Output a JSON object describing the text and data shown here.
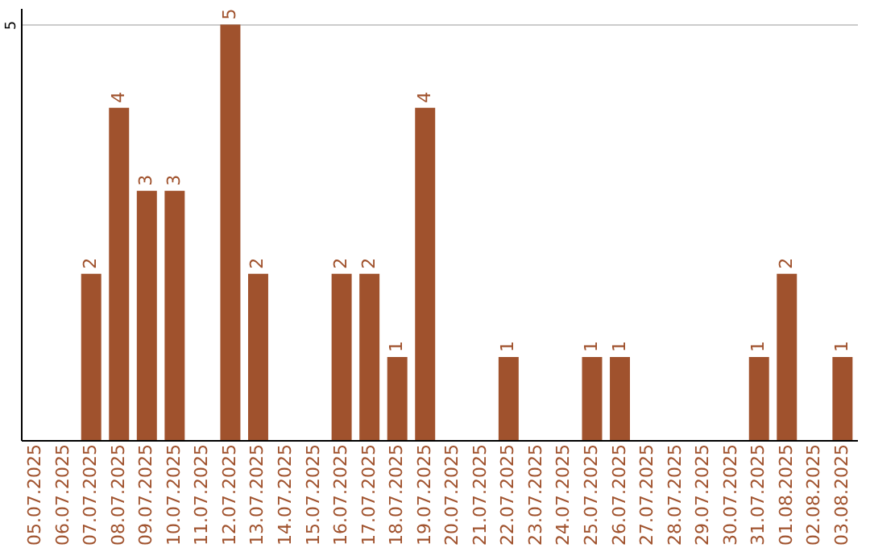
{
  "chart_data": {
    "type": "bar",
    "categories": [
      "05.07.2025",
      "06.07.2025",
      "07.07.2025",
      "08.07.2025",
      "09.07.2025",
      "10.07.2025",
      "11.07.2025",
      "12.07.2025",
      "13.07.2025",
      "14.07.2025",
      "15.07.2025",
      "16.07.2025",
      "17.07.2025",
      "18.07.2025",
      "19.07.2025",
      "20.07.2025",
      "21.07.2025",
      "22.07.2025",
      "23.07.2025",
      "24.07.2025",
      "25.07.2025",
      "26.07.2025",
      "27.07.2025",
      "28.07.2025",
      "29.07.2025",
      "30.07.2025",
      "31.07.2025",
      "01.08.2025",
      "02.08.2025",
      "03.08.2025"
    ],
    "values": [
      0,
      0,
      2,
      4,
      3,
      3,
      0,
      5,
      2,
      0,
      0,
      2,
      2,
      1,
      4,
      0,
      0,
      1,
      0,
      0,
      1,
      1,
      0,
      0,
      0,
      0,
      1,
      2,
      0,
      1
    ],
    "value_labels": [
      null,
      null,
      "2",
      "4",
      "3",
      "3",
      null,
      "5",
      "2",
      null,
      null,
      "2",
      "2",
      "1",
      "4",
      null,
      null,
      "1",
      null,
      null,
      "1",
      "1",
      null,
      null,
      null,
      null,
      "1",
      "2",
      null,
      "1"
    ],
    "color": "#a0522d",
    "ylim": [
      0,
      5.2
    ],
    "yticks": [
      5
    ],
    "grid": "y"
  }
}
